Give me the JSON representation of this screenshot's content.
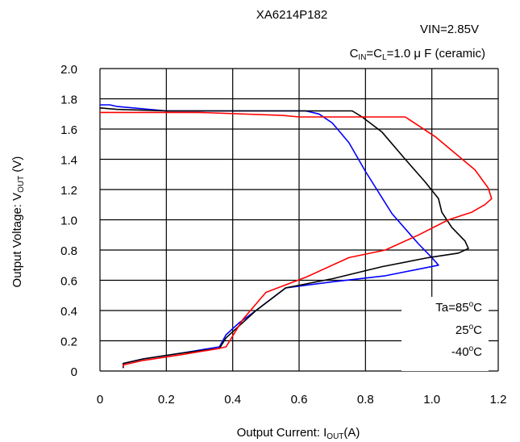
{
  "chart_data": {
    "type": "line",
    "title": "XA6214P182",
    "conditions": {
      "vin": "VIN=2.85V",
      "cap_c1": "C",
      "cap_sub_in": "IN",
      "cap_eq": "=C",
      "cap_sub_l": "L",
      "cap_value": "=1.0 μ F  (ceramic)"
    },
    "xlabel": {
      "main": "Output Current: I",
      "sub": "OUT",
      "unit": "(A)"
    },
    "ylabel": {
      "main": "Output Voltage: V",
      "sub": "OUT",
      "unit": " (V)"
    },
    "xlim": [
      0,
      1.2
    ],
    "ylim": [
      0,
      2.0
    ],
    "xticks": [
      "0",
      "0.2",
      "0.4",
      "0.6",
      "0.8",
      "1.0",
      "1.2"
    ],
    "yticks": [
      "0",
      "0.2",
      "0.4",
      "0.6",
      "0.8",
      "1.0",
      "1.2",
      "1.4",
      "1.6",
      "1.8",
      "2.0"
    ],
    "grid": true,
    "legend_placement": "bottom-right",
    "series": [
      {
        "name": "Ta=85°C",
        "label_prefix": "Ta=85",
        "label_sup": "o",
        "label_suffix": "C",
        "color": "#0000ff",
        "x": [
          0.07,
          0.07,
          0.13,
          0.25,
          0.36,
          0.38,
          0.42,
          0.47,
          0.56,
          0.7,
          0.86,
          1.02,
          1.0,
          0.96,
          0.88,
          0.8,
          0.75,
          0.7,
          0.66,
          0.62,
          0.55,
          0.4,
          0.2,
          0.05,
          0.03,
          0.0
        ],
        "y": [
          0.02,
          0.05,
          0.08,
          0.12,
          0.16,
          0.24,
          0.32,
          0.4,
          0.55,
          0.59,
          0.63,
          0.7,
          0.75,
          0.84,
          1.04,
          1.32,
          1.51,
          1.64,
          1.7,
          1.72,
          1.72,
          1.72,
          1.72,
          1.75,
          1.76,
          1.76
        ]
      },
      {
        "name": "25°C",
        "label_prefix": "25",
        "label_sup": "o",
        "label_suffix": "C",
        "color": "#000000",
        "x": [
          0.07,
          0.07,
          0.13,
          0.25,
          0.36,
          0.38,
          0.42,
          0.47,
          0.56,
          0.7,
          0.85,
          0.99,
          1.08,
          1.11,
          1.1,
          1.06,
          1.03,
          1.02,
          0.98,
          0.92,
          0.85,
          0.79,
          0.76,
          0.7,
          0.6,
          0.4,
          0.2,
          0.05,
          0.0
        ],
        "y": [
          0.02,
          0.05,
          0.08,
          0.12,
          0.15,
          0.22,
          0.3,
          0.4,
          0.55,
          0.61,
          0.69,
          0.75,
          0.78,
          0.81,
          0.86,
          0.95,
          1.05,
          1.14,
          1.25,
          1.4,
          1.58,
          1.68,
          1.72,
          1.72,
          1.72,
          1.72,
          1.72,
          1.73,
          1.74
        ]
      },
      {
        "name": "-40°C",
        "label_prefix": "-40",
        "label_sup": "o",
        "label_suffix": "C",
        "color": "#ff0000",
        "x": [
          0.07,
          0.07,
          0.13,
          0.25,
          0.36,
          0.38,
          0.43,
          0.5,
          0.62,
          0.75,
          0.86,
          0.96,
          1.05,
          1.12,
          1.16,
          1.18,
          1.17,
          1.13,
          1.07,
          1.01,
          0.92,
          0.6,
          0.55,
          0.3,
          0.1,
          0.0
        ],
        "y": [
          0.03,
          0.04,
          0.07,
          0.11,
          0.15,
          0.16,
          0.34,
          0.52,
          0.62,
          0.75,
          0.8,
          0.9,
          1.0,
          1.05,
          1.1,
          1.14,
          1.21,
          1.33,
          1.44,
          1.55,
          1.68,
          1.68,
          1.69,
          1.71,
          1.71,
          1.71
        ]
      }
    ]
  }
}
